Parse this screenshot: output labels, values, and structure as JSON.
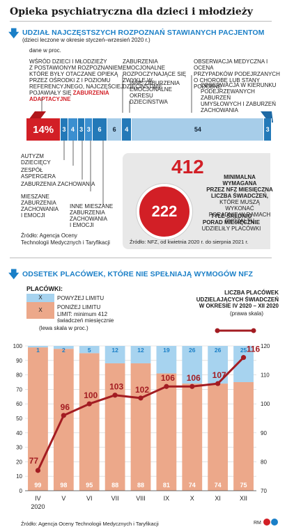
{
  "title": "Opieka psychiatryczna dla dzieci i młodzieży",
  "section1": {
    "heading": "UDZIAŁ NAJCZĘSTSZYCH ROZPOZNAŃ STAWIANYCH PACJENTOM",
    "subheading": "(dzieci leczone w okresie styczeń–wrzesień 2020 r.)",
    "unit": "dane w proc.",
    "source_line1": "Źródło: Agencja Oceny",
    "source_line2": "Technologii Medycznych i Taryfikacji"
  },
  "labels_top": {
    "adaptive": [
      "WŚRÓD DZIECI I MŁODZIEŻY",
      "Z POSTAWIONYM ROZPOZNANIEM,",
      "KTÓRE BYŁY OTACZANE OPIEKĄ",
      "PRZEZ OŚRODKI Z I POZIOMU",
      "REFERENCYJNEGO, NAJCZĘŚCIEJ",
      "POJAWIAŁY SIĘ"
    ],
    "adaptive_red1": "ZABURZENIA",
    "adaptive_red2": "ADAPTACYJNE",
    "emo_usual": [
      "ZABURZENIA EMOCJONALNE",
      "ROZPOCZYNAJĄCE SIĘ",
      "ZWYKLE W DZIECIŃSTWIE"
    ],
    "emo_other": [
      "INNE ZABURZENIA",
      "EMOCJONALNE OKRESU",
      "DZIECIŃSTWA"
    ],
    "observation": [
      "OBSERWACJA MEDYCZNA I OCENA",
      "PRZYPADKÓW PODEJRZANYCH",
      "O CHOROBĘ LUB STANY PODOBNE"
    ],
    "observation_mental": [
      "OBSERWACJA W KIERUNKU",
      "PODEJRZEWANYCH ZABURZEŃ",
      "UMYSŁOWYCH I ZABURZEŃ",
      "ZACHOWANIA"
    ]
  },
  "labels_bottom": {
    "autism": [
      "AUTYZM",
      "DZIECIĘCY"
    ],
    "asperger": [
      "ZESPÓŁ",
      "ASPERGERA"
    ],
    "conduct": [
      "ZABURZENIA ZACHOWANIA"
    ],
    "mixed": [
      "MIESZANE",
      "ZABURZENIA",
      "ZACHOWANIA",
      "I EMOCJI"
    ],
    "other_mixed": [
      "INNE MIESZANE",
      "ZABURZENIA",
      "ZACHOWANIA",
      "I EMOCJI"
    ]
  },
  "bar_segments": [
    {
      "value": "14%",
      "color": "#d21f26"
    },
    {
      "value": "3",
      "color": "#2379b8"
    },
    {
      "value": "4",
      "color": "#3b8fd0"
    },
    {
      "value": "3",
      "color": "#2379b8"
    },
    {
      "value": "3",
      "color": "#3b8fd0"
    },
    {
      "value": "6",
      "color": "#2379b8"
    },
    {
      "value": "6",
      "color": "#a7cde9"
    },
    {
      "value": "4",
      "color": "#2379b8"
    },
    {
      "value": "54",
      "color": "#a7cde9"
    },
    {
      "value": "3",
      "color": "#2379b8"
    }
  ],
  "infobox": {
    "big_number": "412",
    "big_bold": [
      "MINIMALNA WYMAGANA",
      "PRZEZ NFZ MIESIĘCZNA",
      "LICZBA ŚWIADCZEŃ,"
    ],
    "big_normal": [
      "KTÓRE MUSZĄ WYKONAĆ",
      "PORADNIE W RAMACH",
      "RYCZAŁTU"
    ],
    "circle_number": "222",
    "circle_bold": [
      "TYLE ŚREDNIO",
      "PORAD MIESIĘCZNIE"
    ],
    "circle_normal": "UDZIELIŁY PLACÓWKI",
    "source": "Źródło: NFZ, od kwietnia 2020 r. do sierpnia 2021 r."
  },
  "section2": {
    "heading": "ODSETEK PLACÓWEK, KTÓRE NIE SPEŁNIAJĄ WYMOGÓW NFZ",
    "legend_title": "PLACÓWKI:",
    "legend_above_mark": "X",
    "legend_above": "POWYŻEJ LIMITU",
    "legend_below_mark": "X",
    "legend_below": "PONIŻEJ LIMITU",
    "legend_limit": "LIMIT: minimum 412",
    "legend_limit2": "świadczeń miesięcznie",
    "left_scale": "(lewa skala w proc.)",
    "right_title": [
      "LICZBA PLACÓWEK",
      "UDZIELAJĄCYCH ŚWIADCZEŃ",
      "W OKRESIE IV 2020 – XII 2020"
    ],
    "right_scale": "(prawa skala)",
    "year": "2020",
    "source": "Źródło: Agencja Oceny Technologii Medycznych i Taryfikacji",
    "credit": "RM"
  },
  "colors": {
    "accent_blue": "#1a7fc7",
    "red": "#d21f26",
    "dark_red": "#a31c22",
    "salmon": "#eca88a",
    "light_blue": "#a7d3ef",
    "gray_box": "#e8e8e8"
  },
  "chart_data": {
    "type": "bar",
    "categories": [
      "IV",
      "V",
      "VI",
      "VII",
      "VIII",
      "IX",
      "X",
      "XI",
      "XII"
    ],
    "series": [
      {
        "name": "PONIŻEJ LIMITU",
        "values": [
          99,
          98,
          95,
          88,
          88,
          81,
          74,
          74,
          75
        ],
        "color": "#eca88a"
      },
      {
        "name": "POWYŻEJ LIMITU",
        "values": [
          1,
          2,
          5,
          12,
          12,
          19,
          26,
          26,
          25
        ],
        "color": "#a7d3ef"
      }
    ],
    "line_series": {
      "name": "LICZBA PLACÓWEK UDZIELAJĄCYCH ŚWIADCZEŃ",
      "values": [
        77,
        96,
        100,
        103,
        102,
        106,
        106,
        107,
        116
      ],
      "color": "#a31c22"
    },
    "left_axis": {
      "ticks": [
        0,
        10,
        20,
        30,
        40,
        50,
        60,
        70,
        80,
        90,
        100
      ],
      "ylim": [
        0,
        100
      ]
    },
    "right_axis": {
      "ticks": [
        70,
        80,
        90,
        100,
        110,
        120
      ],
      "ylim": [
        70,
        120
      ]
    },
    "grid": true
  }
}
